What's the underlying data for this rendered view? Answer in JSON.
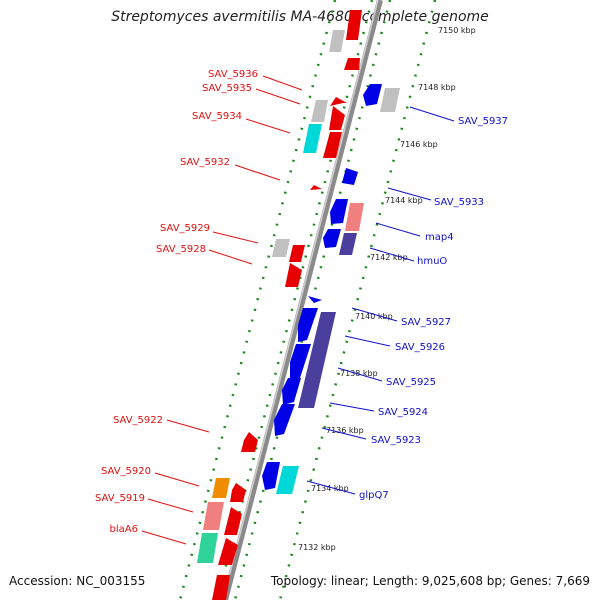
{
  "title": "Streptomyces avermitilis MA-4680, complete genome",
  "accession": "Accession: NC_003155",
  "summary": "Topology: linear; Length: 9,025,608 bp; Genes: 7,669",
  "colors": {
    "forward": "#e60000",
    "reverse": "#0000e6",
    "grey": "#c0c0c0",
    "cyan": "#00d8d8",
    "pink": "#f08080",
    "purple": "#4a3f9c",
    "orange": "#f08c00",
    "teal": "#2fd39a",
    "backbone": "#8a8a8a",
    "tick": "#1a8a1a"
  },
  "scale": {
    "unit": "kbp",
    "labels": [
      "7150 kbp",
      "7148 kbp",
      "7146 kbp",
      "7144 kbp",
      "7142 kbp",
      "7140 kbp",
      "7138 kbp",
      "7136 kbp",
      "7134 kbp",
      "7132 kbp"
    ]
  },
  "genes_left": [
    "SAV_5936",
    "SAV_5935",
    "SAV_5934",
    "SAV_5932",
    "SAV_5929",
    "SAV_5928",
    "SAV_5922",
    "SAV_5920",
    "SAV_5919",
    "blaA6"
  ],
  "genes_right": [
    "SAV_5937",
    "SAV_5933",
    "map4",
    "hmuO",
    "SAV_5927",
    "SAV_5926",
    "SAV_5925",
    "SAV_5924",
    "SAV_5923",
    "glpQ7"
  ]
}
